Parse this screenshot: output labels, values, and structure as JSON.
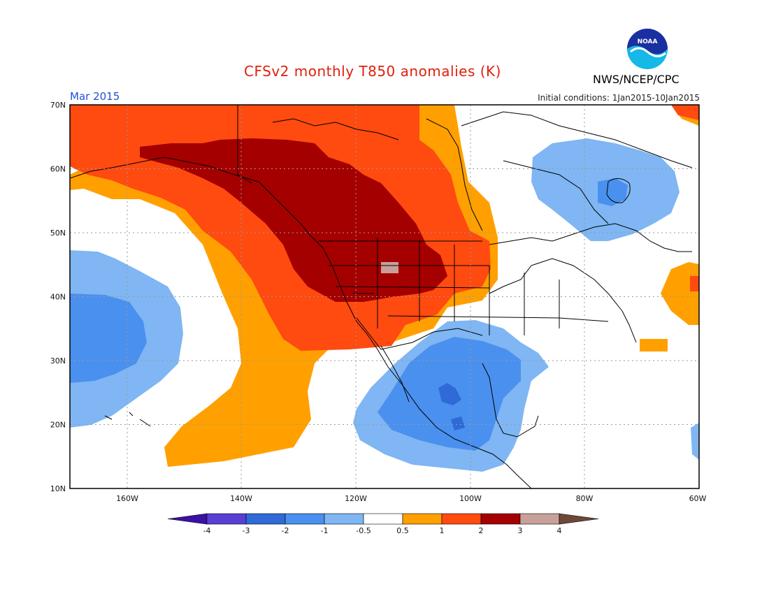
{
  "header": {
    "title": "CFSv2 monthly T850 anomalies (K)",
    "month": "Mar 2015",
    "initial_conditions": "Initial conditions: 1Jan2015-10Jan2015",
    "agency": "NWS/NCEP/CPC",
    "logo_text": "NOAA"
  },
  "axes": {
    "lat_labels": [
      "70N",
      "60N",
      "50N",
      "40N",
      "30N",
      "20N",
      "10N"
    ],
    "lon_labels": [
      "160W",
      "140W",
      "120W",
      "100W",
      "80W",
      "60W"
    ]
  },
  "colorbar": {
    "ticks": [
      "-4",
      "-3",
      "-2",
      "-1",
      "-0.5",
      "0.5",
      "1",
      "2",
      "3",
      "4"
    ],
    "colors": [
      "#3c0fa6",
      "#5a3fd2",
      "#2f6ad6",
      "#4a90ee",
      "#7fb6f3",
      "#ffffff",
      "#ffa000",
      "#ff4a10",
      "#a40000",
      "#c8a09a",
      "#6e4838"
    ]
  },
  "map": {
    "region": "North America and eastern Pacific",
    "lat_range": [
      10,
      70
    ],
    "lon_range": [
      -171,
      -60
    ],
    "variable": "T850 anomaly",
    "units": "K"
  }
}
